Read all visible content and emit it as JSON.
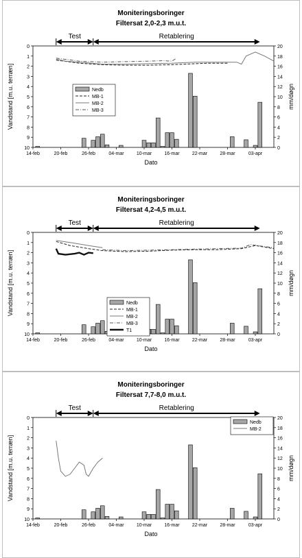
{
  "chart_data": [
    {
      "type": "bar+line",
      "title": "Moniteringsboringer",
      "subtitle": "Filtersat 2,0-2,3 m.u.t.",
      "xlabel": "Dato",
      "ylabel": "Vandstand [m.u. terræn]",
      "y2label": "mm/døgn",
      "x_tick_labels": [
        "14-feb",
        "20-feb",
        "26-feb",
        "04-mar",
        "10-mar",
        "16-mar",
        "22-mar",
        "28-mar",
        "03-apr"
      ],
      "ylim": [
        10,
        0
      ],
      "y2lim": [
        0,
        20
      ],
      "periods": [
        {
          "label": "Test",
          "start_day": 5,
          "end_day": 13
        },
        {
          "label": "Retablering",
          "start_day": 13,
          "end_day": 49
        }
      ],
      "legend": {
        "placement": "center-left",
        "entries": [
          "Nedb",
          "MB-1",
          "MB-2",
          "MB-3"
        ]
      },
      "bars": {
        "name": "Nedb",
        "values": [
          {
            "day": 1,
            "mm": 0.2
          },
          {
            "day": 11,
            "mm": 1.8
          },
          {
            "day": 13,
            "mm": 1.4
          },
          {
            "day": 14,
            "mm": 2.1
          },
          {
            "day": 15,
            "mm": 2.6
          },
          {
            "day": 16,
            "mm": 0.5
          },
          {
            "day": 19,
            "mm": 0.4
          },
          {
            "day": 24,
            "mm": 1.4
          },
          {
            "day": 25,
            "mm": 0.9
          },
          {
            "day": 26,
            "mm": 0.9
          },
          {
            "day": 27,
            "mm": 5.8
          },
          {
            "day": 28,
            "mm": 0.2
          },
          {
            "day": 29,
            "mm": 2.9
          },
          {
            "day": 30,
            "mm": 2.9
          },
          {
            "day": 31,
            "mm": 1.6
          },
          {
            "day": 34,
            "mm": 14.6
          },
          {
            "day": 35,
            "mm": 10.1
          },
          {
            "day": 43,
            "mm": 2.1
          },
          {
            "day": 46,
            "mm": 1.5
          },
          {
            "day": 48,
            "mm": 0.4
          },
          {
            "day": 49,
            "mm": 8.9
          }
        ]
      },
      "series": [
        {
          "name": "MB-1",
          "style": "dashed",
          "points": [
            [
              5,
              1.4
            ],
            [
              10,
              1.7
            ],
            [
              15,
              1.85
            ],
            [
              20,
              1.9
            ],
            [
              25,
              1.9
            ],
            [
              30,
              1.85
            ],
            [
              35,
              1.75
            ],
            [
              38,
              1.7
            ],
            [
              40,
              1.7
            ],
            [
              42,
              1.7
            ]
          ]
        },
        {
          "name": "MB-2",
          "style": "solid",
          "points": [
            [
              5,
              1.3
            ],
            [
              7,
              1.5
            ],
            [
              10,
              1.6
            ],
            [
              15,
              1.8
            ],
            [
              20,
              1.8
            ],
            [
              25,
              1.75
            ],
            [
              30,
              1.7
            ],
            [
              35,
              1.6
            ],
            [
              40,
              1.6
            ],
            [
              44,
              1.6
            ],
            [
              45,
              1.8
            ],
            [
              46,
              1.0
            ],
            [
              48,
              0.6
            ],
            [
              50,
              1.0
            ],
            [
              52,
              1.5
            ]
          ]
        },
        {
          "name": "MB-3",
          "style": "dash-dot",
          "points": [
            [
              5,
              1.2
            ],
            [
              10,
              1.5
            ],
            [
              15,
              1.6
            ],
            [
              20,
              1.55
            ],
            [
              25,
              1.5
            ],
            [
              28,
              1.45
            ],
            [
              30,
              1.5
            ],
            [
              31,
              1.2
            ]
          ]
        }
      ]
    },
    {
      "type": "bar+line",
      "title": "Moniteringsboringer",
      "subtitle": "Filtersat 4,2-4,5 m.u.t.",
      "xlabel": "Dato",
      "ylabel": "Vandstand [m.u. terræn]",
      "y2label": "mm/døgn",
      "x_tick_labels": [
        "14-feb",
        "20-feb",
        "26-feb",
        "04-mar",
        "10-mar",
        "16-mar",
        "22-mar",
        "28-mar",
        "03-apr"
      ],
      "ylim": [
        10,
        0
      ],
      "y2lim": [
        0,
        20
      ],
      "periods": [
        {
          "label": "Test",
          "start_day": 5,
          "end_day": 13
        },
        {
          "label": "Retablering",
          "start_day": 13,
          "end_day": 49
        }
      ],
      "legend": {
        "placement": "center",
        "entries": [
          "Nedb",
          "MB-1",
          "MB-2",
          "MB-3",
          "T1"
        ]
      },
      "bars": {
        "name": "Nedb",
        "values": [
          {
            "day": 1,
            "mm": 0.2
          },
          {
            "day": 11,
            "mm": 1.8
          },
          {
            "day": 13,
            "mm": 1.4
          },
          {
            "day": 14,
            "mm": 2.1
          },
          {
            "day": 15,
            "mm": 2.6
          },
          {
            "day": 16,
            "mm": 0.5
          },
          {
            "day": 19,
            "mm": 0.4
          },
          {
            "day": 24,
            "mm": 1.4
          },
          {
            "day": 25,
            "mm": 0.9
          },
          {
            "day": 26,
            "mm": 0.9
          },
          {
            "day": 27,
            "mm": 5.8
          },
          {
            "day": 28,
            "mm": 0.2
          },
          {
            "day": 29,
            "mm": 2.9
          },
          {
            "day": 30,
            "mm": 2.9
          },
          {
            "day": 31,
            "mm": 1.6
          },
          {
            "day": 34,
            "mm": 14.6
          },
          {
            "day": 35,
            "mm": 10.1
          },
          {
            "day": 43,
            "mm": 2.1
          },
          {
            "day": 46,
            "mm": 1.5
          },
          {
            "day": 48,
            "mm": 0.4
          },
          {
            "day": 49,
            "mm": 8.9
          }
        ]
      },
      "series": [
        {
          "name": "MB-1",
          "style": "dashed",
          "points": [
            [
              5,
              0.9
            ],
            [
              8,
              1.3
            ],
            [
              12,
              1.6
            ],
            [
              15,
              1.8
            ],
            [
              20,
              1.9
            ],
            [
              25,
              1.85
            ],
            [
              30,
              1.75
            ],
            [
              35,
              1.7
            ],
            [
              40,
              1.7
            ],
            [
              45,
              1.6
            ],
            [
              48,
              1.3
            ],
            [
              52,
              1.6
            ]
          ]
        },
        {
          "name": "MB-2",
          "style": "solid",
          "points": [
            [
              5,
              0.8
            ],
            [
              8,
              1.0
            ],
            [
              12,
              1.3
            ],
            [
              15,
              1.5
            ]
          ]
        },
        {
          "name": "MB-3",
          "style": "dash-dot",
          "points": [
            [
              15,
              1.7
            ],
            [
              20,
              1.8
            ],
            [
              25,
              1.75
            ],
            [
              30,
              1.7
            ],
            [
              35,
              1.65
            ],
            [
              40,
              1.6
            ],
            [
              45,
              1.55
            ],
            [
              47,
              1.2
            ],
            [
              50,
              1.4
            ],
            [
              52,
              1.5
            ]
          ]
        },
        {
          "name": "T1",
          "style": "bold",
          "points": [
            [
              5,
              1.6
            ],
            [
              5.5,
              2.1
            ],
            [
              7,
              2.2
            ],
            [
              9,
              2.1
            ],
            [
              10,
              2.0
            ],
            [
              11,
              2.2
            ],
            [
              12,
              2.0
            ],
            [
              13,
              2.05
            ]
          ]
        }
      ]
    },
    {
      "type": "bar+line",
      "title": "Moniteringsboringer",
      "subtitle": "Filtersat 7,7-8,0 m.u.t.",
      "xlabel": "Dato",
      "ylabel": "Vandstand [m.u. terræn]",
      "y2label": "mm/døgn",
      "x_tick_labels": [
        "14-feb",
        "20-feb",
        "26-feb",
        "04-mar",
        "10-mar",
        "16-mar",
        "22-mar",
        "28-mar",
        "03-apr"
      ],
      "ylim": [
        10,
        0
      ],
      "y2lim": [
        0,
        20
      ],
      "periods": [
        {
          "label": "Test",
          "start_day": 5,
          "end_day": 13
        },
        {
          "label": "Retablering",
          "start_day": 13,
          "end_day": 49
        }
      ],
      "legend": {
        "placement": "top-right",
        "entries": [
          "Nedb",
          "MB-2"
        ]
      },
      "bars": {
        "name": "Nedb",
        "values": [
          {
            "day": 1,
            "mm": 0.2
          },
          {
            "day": 11,
            "mm": 1.8
          },
          {
            "day": 13,
            "mm": 1.4
          },
          {
            "day": 14,
            "mm": 2.1
          },
          {
            "day": 15,
            "mm": 2.6
          },
          {
            "day": 16,
            "mm": 0.5
          },
          {
            "day": 19,
            "mm": 0.4
          },
          {
            "day": 24,
            "mm": 1.4
          },
          {
            "day": 25,
            "mm": 0.9
          },
          {
            "day": 26,
            "mm": 0.9
          },
          {
            "day": 27,
            "mm": 5.8
          },
          {
            "day": 28,
            "mm": 0.2
          },
          {
            "day": 29,
            "mm": 2.9
          },
          {
            "day": 30,
            "mm": 2.9
          },
          {
            "day": 31,
            "mm": 1.6
          },
          {
            "day": 34,
            "mm": 14.6
          },
          {
            "day": 35,
            "mm": 10.1
          },
          {
            "day": 43,
            "mm": 2.1
          },
          {
            "day": 46,
            "mm": 1.5
          },
          {
            "day": 48,
            "mm": 0.4
          },
          {
            "day": 49,
            "mm": 8.9
          }
        ]
      },
      "series": [
        {
          "name": "MB-2",
          "style": "solid",
          "points": [
            [
              5,
              2.3
            ],
            [
              5.5,
              4.0
            ],
            [
              6,
              5.3
            ],
            [
              7,
              5.8
            ],
            [
              8,
              5.6
            ],
            [
              9,
              5.0
            ],
            [
              10,
              4.4
            ],
            [
              11,
              4.7
            ],
            [
              11.5,
              5.6
            ],
            [
              12,
              5.8
            ],
            [
              13,
              5.0
            ],
            [
              14,
              4.4
            ],
            [
              15,
              4.0
            ]
          ]
        }
      ]
    }
  ]
}
